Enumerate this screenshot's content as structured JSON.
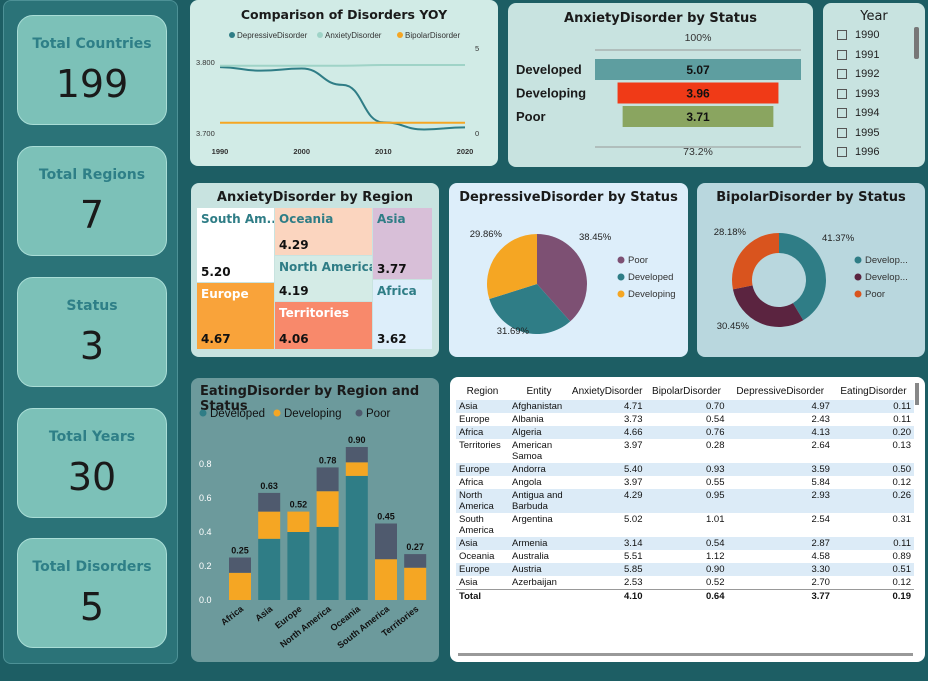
{
  "kpis": [
    {
      "title": "Total Countries",
      "value": "199"
    },
    {
      "title": "Total Regions",
      "value": "7"
    },
    {
      "title": "Status",
      "value": "3"
    },
    {
      "title": "Total Years",
      "value": "30"
    },
    {
      "title": "Total Disorders",
      "value": "5"
    }
  ],
  "yoy": {
    "title": "Comparison of Disorders YOY",
    "legend": [
      {
        "name": "DepressiveDisorder",
        "color": "#2f7d86"
      },
      {
        "name": "AnxietyDisorder",
        "color": "#9fd3c7"
      },
      {
        "name": "BipolarDisorder",
        "color": "#f5a623"
      }
    ],
    "left_ticks": [
      "3.800",
      "3.700"
    ],
    "right_ticks": [
      "5",
      "0"
    ],
    "x_ticks": [
      "1990",
      "2000",
      "2010",
      "2020"
    ]
  },
  "anxiety_status": {
    "title": "AnxietyDisorder by Status",
    "top_label": "100%",
    "bottom_label": "73.2%"
  },
  "year_slicer": {
    "title": "Year",
    "items": [
      "1990",
      "1991",
      "1992",
      "1993",
      "1994",
      "1995",
      "1996"
    ]
  },
  "anxiety_region": {
    "title": "AnxietyDisorder by Region"
  },
  "depressive_status": {
    "title": "DepressiveDisorder by Status"
  },
  "bipolar_status": {
    "title": "BipolarDisorder by Status"
  },
  "eating": {
    "title": "EatingDisorder by Region and Status",
    "legend": [
      "Developed",
      "Developing",
      "Poor"
    ],
    "y_ticks": [
      "0.8",
      "0.6",
      "0.4",
      "0.2",
      "0.0"
    ]
  },
  "table": {
    "columns": [
      "Region",
      "Entity",
      "AnxietyDisorder",
      "BipolarDisorder",
      "DepressiveDisorder",
      "EatingDisorder"
    ],
    "rows": [
      [
        "Asia",
        "Afghanistan",
        "4.71",
        "0.70",
        "4.97",
        "0.11"
      ],
      [
        "Europe",
        "Albania",
        "3.73",
        "0.54",
        "2.43",
        "0.11"
      ],
      [
        "Africa",
        "Algeria",
        "4.66",
        "0.76",
        "4.13",
        "0.20"
      ],
      [
        "Territories",
        "American Samoa",
        "3.97",
        "0.28",
        "2.64",
        "0.13"
      ],
      [
        "Europe",
        "Andorra",
        "5.40",
        "0.93",
        "3.59",
        "0.50"
      ],
      [
        "Africa",
        "Angola",
        "3.97",
        "0.55",
        "5.84",
        "0.12"
      ],
      [
        "North America",
        "Antigua and Barbuda",
        "4.29",
        "0.95",
        "2.93",
        "0.26"
      ],
      [
        "South America",
        "Argentina",
        "5.02",
        "1.01",
        "2.54",
        "0.31"
      ],
      [
        "Asia",
        "Armenia",
        "3.14",
        "0.54",
        "2.87",
        "0.11"
      ],
      [
        "Oceania",
        "Australia",
        "5.51",
        "1.12",
        "4.58",
        "0.89"
      ],
      [
        "Europe",
        "Austria",
        "5.85",
        "0.90",
        "3.30",
        "0.51"
      ],
      [
        "Asia",
        "Azerbaijan",
        "2.53",
        "0.52",
        "2.70",
        "0.12"
      ]
    ],
    "total": [
      "Total",
      "",
      "4.10",
      "0.64",
      "3.77",
      "0.19"
    ]
  },
  "chart_data": [
    {
      "type": "line",
      "title": "Comparison of Disorders YOY",
      "x": [
        1990,
        1995,
        2000,
        2005,
        2010,
        2015,
        2020
      ],
      "xlim": [
        1990,
        2020
      ],
      "series": [
        {
          "name": "DepressiveDisorder",
          "axis": "left",
          "values": [
            3.793,
            3.788,
            3.791,
            3.768,
            3.715,
            3.705,
            3.708
          ]
        },
        {
          "name": "AnxietyDisorder",
          "axis": "left",
          "values": [
            3.795,
            3.795,
            3.795,
            3.795,
            3.796,
            3.796,
            3.796
          ]
        },
        {
          "name": "BipolarDisorder",
          "axis": "right",
          "values": [
            0.6,
            0.6,
            0.6,
            0.6,
            0.6,
            0.6,
            0.6
          ]
        }
      ],
      "ylim_left": [
        3.7,
        3.82
      ],
      "ylim_right": [
        0,
        5
      ],
      "legend": "top"
    },
    {
      "type": "bar",
      "orientation": "funnel",
      "title": "AnxietyDisorder by Status",
      "categories": [
        "Developed",
        "Developing",
        "Poor"
      ],
      "values": [
        5.07,
        3.96,
        3.71
      ],
      "colors": [
        "#5e9ea0",
        "#f03a17",
        "#8aa560"
      ]
    },
    {
      "type": "heatmap",
      "subtype": "treemap",
      "title": "AnxietyDisorder by Region",
      "categories": [
        "South America",
        "Oceania",
        "Asia",
        "North America",
        "Africa",
        "Europe",
        "Territories"
      ],
      "labels": [
        "South Am...",
        "Oceania",
        "Asia",
        "North America",
        "Africa",
        "Europe",
        "Territories"
      ],
      "values": [
        5.2,
        4.29,
        3.77,
        4.19,
        3.62,
        4.67,
        4.06
      ],
      "colors": [
        "#ffffff",
        "#fbd5bf",
        "#d8bfd8",
        "#d4ebe6",
        "#ddeefa",
        "#f9a33a",
        "#f8896b"
      ]
    },
    {
      "type": "pie",
      "title": "DepressiveDisorder by Status",
      "categories": [
        "Poor",
        "Developed",
        "Developing"
      ],
      "values": [
        38.45,
        31.69,
        29.86
      ],
      "colors": [
        "#7d5073",
        "#2f7d86",
        "#f5a623"
      ]
    },
    {
      "type": "pie",
      "subtype": "donut",
      "title": "BipolarDisorder by Status",
      "categories": [
        "Develop...",
        "Develop...",
        "Poor"
      ],
      "values": [
        41.37,
        30.45,
        28.18
      ],
      "colors": [
        "#2f7d86",
        "#5b2440",
        "#d9541e"
      ]
    },
    {
      "type": "bar",
      "stacked": true,
      "title": "EatingDisorder by Region and Status",
      "categories": [
        "Africa",
        "Asia",
        "Europe",
        "North America",
        "Oceania",
        "South America",
        "Territories"
      ],
      "series": [
        {
          "name": "Developed",
          "values": [
            0,
            0.36,
            0.4,
            0.43,
            0.73,
            0,
            0
          ]
        },
        {
          "name": "Developing",
          "values": [
            0.16,
            0.16,
            0.12,
            0.21,
            0.08,
            0.24,
            0.19
          ]
        },
        {
          "name": "Poor",
          "values": [
            0.09,
            0.11,
            0,
            0.14,
            0.09,
            0.21,
            0.08
          ]
        }
      ],
      "totals": [
        "0.25",
        "0.63",
        "0.52",
        "0.78",
        "0.90",
        "0.45",
        "0.27"
      ],
      "ylim": [
        0,
        1.0
      ],
      "legend": "top-left"
    }
  ]
}
